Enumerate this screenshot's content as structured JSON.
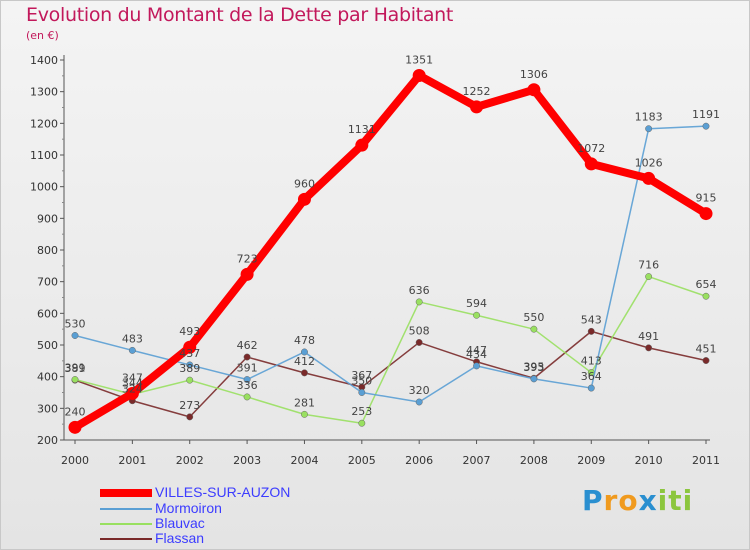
{
  "title": "Evolution du Montant de la Dette par Habitant",
  "unit": "(en €)",
  "colors": {
    "title": "#c2185b",
    "legend_text": "#3c3cff",
    "VILLES-SUR-AUZON": "#ff0000",
    "Mormoiron": "#5a9fd4",
    "Blauvac": "#99e060",
    "Flassan": "#7a2a2a"
  },
  "chart_data": {
    "type": "line",
    "title": "Evolution du Montant de la Dette par Habitant",
    "ylabel": "(en €)",
    "xlabel": "",
    "x": [
      "2000",
      "2001",
      "2002",
      "2003",
      "2004",
      "2005",
      "2006",
      "2007",
      "2008",
      "2009",
      "2010",
      "2011"
    ],
    "ylim": [
      200,
      1400
    ],
    "yticks": [
      200,
      300,
      400,
      500,
      600,
      700,
      800,
      900,
      1000,
      1100,
      1200,
      1300,
      1400
    ],
    "grid": false,
    "legend_position": "bottom-left",
    "series": [
      {
        "name": "VILLES-SUR-AUZON",
        "values": [
          240,
          347,
          493,
          723,
          960,
          1131,
          1351,
          1252,
          1306,
          1072,
          1026,
          915
        ],
        "labels": [
          "240",
          "347",
          "493",
          "723",
          "960",
          "1131",
          "1351",
          "1252",
          "1306",
          "1072",
          "1026",
          "915"
        ]
      },
      {
        "name": "Mormoiron",
        "values": [
          530,
          483,
          437,
          391,
          478,
          350,
          320,
          434,
          393,
          364,
          1183,
          1191
        ],
        "labels": [
          "530",
          "483",
          "437",
          "391",
          "478",
          "350",
          "320",
          "434",
          "393",
          "364",
          "1183",
          "1191"
        ]
      },
      {
        "name": "Blauvac",
        "values": [
          391,
          344,
          389,
          336,
          281,
          253,
          636,
          594,
          550,
          413,
          716,
          654
        ],
        "labels": [
          "391",
          "344",
          "389",
          "336",
          "281",
          "253",
          "636",
          "594",
          "550",
          "413",
          "716",
          "654"
        ]
      },
      {
        "name": "Flassan",
        "values": [
          389,
          324,
          273,
          462,
          412,
          367,
          508,
          447,
          395,
          543,
          491,
          451
        ],
        "labels": [
          "389",
          "324",
          "273",
          "462",
          "412",
          "367",
          "508",
          "447",
          "395",
          "543",
          "491",
          "451"
        ]
      }
    ]
  },
  "legend": [
    {
      "label": "VILLES-SUR-AUZON"
    },
    {
      "label": "Mormoiron"
    },
    {
      "label": "Blauvac"
    },
    {
      "label": "Flassan"
    }
  ],
  "logo": {
    "text": "Proxiti",
    "letters": [
      "P",
      "r",
      "o",
      "x",
      "i",
      "t",
      "i"
    ],
    "letter_colors": [
      "#2a8fd0",
      "#f09a1e",
      "#f09a1e",
      "#2a8fd0",
      "#8cc63e",
      "#8cc63e",
      "#8cc63e"
    ]
  }
}
